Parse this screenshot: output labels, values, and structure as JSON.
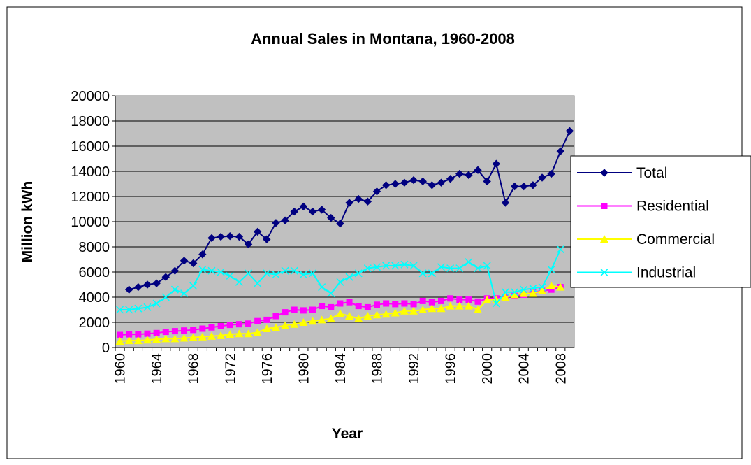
{
  "chart_data": {
    "type": "line",
    "title": "Annual Sales in Montana, 1960-2008",
    "x_label": "Year",
    "y_label": "Million kWh",
    "categories": [
      "1960",
      null,
      null,
      null,
      "1964",
      null,
      null,
      null,
      "1968",
      null,
      null,
      null,
      "1972",
      null,
      null,
      null,
      "1976",
      null,
      null,
      null,
      "1980",
      null,
      null,
      null,
      "1984",
      null,
      null,
      null,
      "1988",
      null,
      null,
      null,
      "1992",
      null,
      null,
      null,
      "1996",
      null,
      null,
      null,
      "2000",
      null,
      null,
      null,
      "2004",
      null,
      null,
      null,
      "2008",
      null
    ],
    "ylim": [
      0,
      20000
    ],
    "yticks": [
      0,
      2000,
      4000,
      6000,
      8000,
      10000,
      12000,
      14000,
      16000,
      18000,
      20000
    ],
    "grid": true,
    "legend": "right",
    "series": [
      {
        "name": "Total",
        "color": "#000080",
        "marker": "diamond",
        "values": [
          null,
          4600,
          4800,
          5000,
          5100,
          5600,
          6100,
          6900,
          6700,
          7400,
          8700,
          8800,
          8850,
          8800,
          8200,
          9200,
          8600,
          9900,
          10100,
          10800,
          11200,
          10800,
          10950,
          10300,
          9850,
          11500,
          11800,
          11600,
          12400,
          12900,
          13000,
          13100,
          13300,
          13200,
          12900,
          13100,
          13400,
          13800,
          13700,
          14100,
          13200,
          14600,
          11500,
          12800,
          12800,
          12900,
          13500,
          13800,
          15600,
          17200
        ]
      },
      {
        "name": "Residential",
        "color": "#ff00ff",
        "marker": "square",
        "values": [
          1000,
          1050,
          1050,
          1100,
          1150,
          1250,
          1300,
          1350,
          1400,
          1500,
          1600,
          1700,
          1800,
          1850,
          1900,
          2100,
          2200,
          2500,
          2800,
          3000,
          2950,
          3000,
          3300,
          3200,
          3500,
          3600,
          3300,
          3200,
          3400,
          3500,
          3450,
          3500,
          3450,
          3700,
          3600,
          3700,
          3900,
          3800,
          3800,
          3650,
          3900,
          3900,
          4000,
          4100,
          4200,
          4400,
          4500,
          4600,
          4800,
          null
        ]
      },
      {
        "name": "Commercial",
        "color": "#ffff00",
        "marker": "triangle",
        "values": [
          500,
          550,
          550,
          600,
          650,
          700,
          700,
          750,
          800,
          850,
          900,
          950,
          1050,
          1100,
          1100,
          1200,
          1500,
          1600,
          1750,
          1850,
          2000,
          2100,
          2200,
          2300,
          2700,
          2500,
          2300,
          2500,
          2600,
          2650,
          2750,
          2900,
          2900,
          3000,
          3100,
          3100,
          3300,
          3300,
          3300,
          3000,
          3800,
          3800,
          4000,
          4200,
          4300,
          4300,
          4500,
          4900,
          4800,
          null
        ]
      },
      {
        "name": "Industrial",
        "color": "#00ffff",
        "marker": "x",
        "values": [
          3000,
          3000,
          3100,
          3200,
          3500,
          4000,
          4600,
          4300,
          4900,
          6200,
          6100,
          6000,
          5700,
          5200,
          5900,
          5100,
          5900,
          5800,
          6100,
          6100,
          5800,
          5900,
          4800,
          4300,
          5200,
          5600,
          5900,
          6300,
          6400,
          6500,
          6500,
          6600,
          6500,
          5900,
          5900,
          6400,
          6300,
          6300,
          6800,
          6300,
          6500,
          3500,
          4400,
          4400,
          4600,
          4700,
          4800,
          6200,
          7800,
          null
        ]
      }
    ]
  }
}
